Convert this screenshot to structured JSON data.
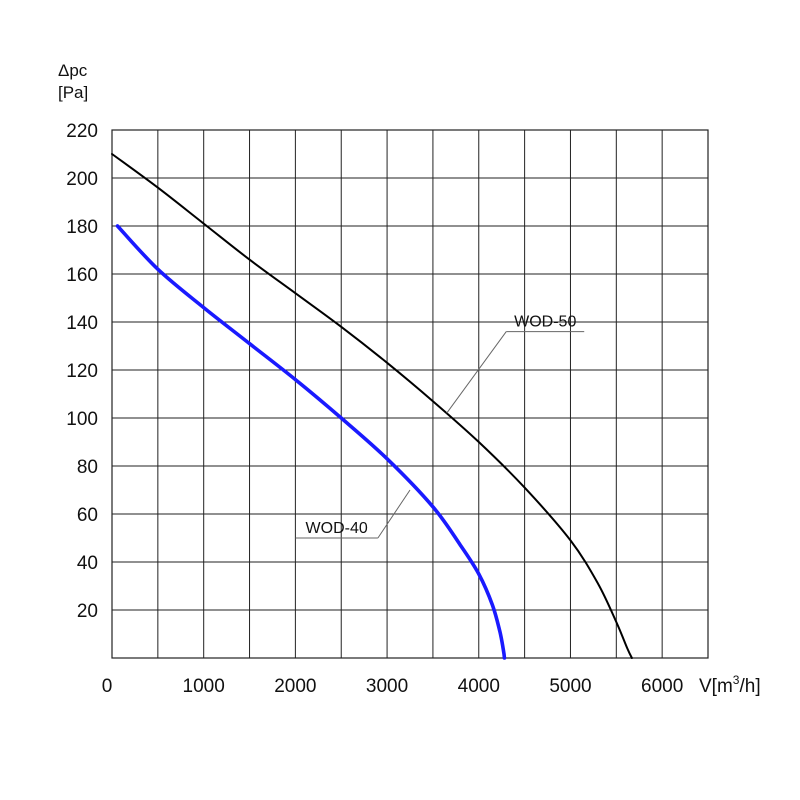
{
  "chart_data": {
    "type": "line",
    "title": "",
    "ylabel_lines": [
      "Δpc",
      "[Pa]"
    ],
    "xlabel_prefix": "V[m",
    "xlabel_sup": "3",
    "xlabel_suffix": "/h]",
    "xlim": [
      0,
      6500
    ],
    "ylim": [
      0,
      220
    ],
    "x_ticks": [
      "0",
      "1000",
      "2000",
      "3000",
      "4000",
      "5000",
      "6000"
    ],
    "x_tick_values": [
      0,
      1000,
      2000,
      3000,
      4000,
      5000,
      6000
    ],
    "y_ticks": [
      "20",
      "40",
      "60",
      "80",
      "100",
      "120",
      "140",
      "160",
      "180",
      "200",
      "220"
    ],
    "y_tick_values": [
      20,
      40,
      60,
      80,
      100,
      120,
      140,
      160,
      180,
      200,
      220
    ],
    "x_grid_step": 500,
    "y_grid_step": 20,
    "grid": true,
    "series": [
      {
        "name": "WOD-40",
        "color": "#1a1aff",
        "points": [
          [
            60,
            180
          ],
          [
            500,
            162
          ],
          [
            1000,
            146
          ],
          [
            1500,
            131
          ],
          [
            2000,
            116
          ],
          [
            2500,
            100
          ],
          [
            3000,
            83
          ],
          [
            3500,
            63
          ],
          [
            3800,
            47
          ],
          [
            4000,
            35
          ],
          [
            4150,
            22
          ],
          [
            4230,
            11
          ],
          [
            4270,
            3
          ],
          [
            4280,
            0
          ]
        ]
      },
      {
        "name": "WOD-50",
        "color": "#000000",
        "points": [
          [
            0,
            210
          ],
          [
            500,
            196
          ],
          [
            1000,
            181
          ],
          [
            1500,
            166
          ],
          [
            2000,
            152
          ],
          [
            2500,
            138
          ],
          [
            3000,
            123
          ],
          [
            3500,
            107
          ],
          [
            4000,
            90
          ],
          [
            4500,
            71
          ],
          [
            5000,
            49
          ],
          [
            5300,
            31
          ],
          [
            5500,
            15
          ],
          [
            5620,
            4
          ],
          [
            5670,
            0
          ]
        ]
      }
    ],
    "callouts": [
      {
        "label": "WOD-50",
        "series": "WOD-50",
        "anchor": [
          3650,
          102
        ],
        "label_pos": [
          4300,
          136
        ],
        "label_end": [
          5150,
          136
        ]
      },
      {
        "label": "WOD-40",
        "series": "WOD-40",
        "anchor": [
          3250,
          70
        ],
        "label_pos": [
          2000,
          50
        ],
        "label_end": [
          2900,
          50
        ]
      }
    ]
  }
}
